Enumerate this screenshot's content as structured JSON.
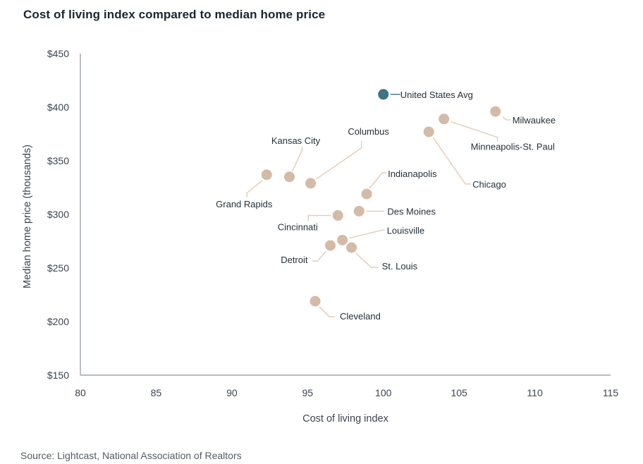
{
  "title": "Cost of living index compared to median home price",
  "source": "Source: Lightcast, National Association of Realtors",
  "colors": {
    "highlight": "#3e7388",
    "point": "#d4bba7",
    "leader": "#e2cbb9",
    "axis": "#8c959b"
  },
  "chart_data": {
    "type": "scatter",
    "title": "Cost of living index compared to median home price",
    "xlabel": "Cost of living index",
    "ylabel": "Median home price (thousands)",
    "xlim": [
      80,
      115
    ],
    "ylim": [
      150,
      450
    ],
    "xticks": [
      80,
      85,
      90,
      95,
      100,
      105,
      110,
      115
    ],
    "yticks": [
      150,
      200,
      250,
      300,
      350,
      400,
      450
    ],
    "xtick_labels": [
      "80",
      "85",
      "90",
      "95",
      "100",
      "105",
      "110",
      "115"
    ],
    "ytick_labels": [
      "$150",
      "$200",
      "$250",
      "$300",
      "$350",
      "$400",
      "$450"
    ],
    "grid": false,
    "legend": "none",
    "points": [
      {
        "label": "United States Avg",
        "x": 100.0,
        "y": 412,
        "highlight": true
      },
      {
        "label": "Milwaukee",
        "x": 107.4,
        "y": 396
      },
      {
        "label": "Minneapolis-St. Paul",
        "x": 104.0,
        "y": 389
      },
      {
        "label": "Chicago",
        "x": 103.0,
        "y": 377
      },
      {
        "label": "Grand Rapids",
        "x": 92.3,
        "y": 337
      },
      {
        "label": "Kansas City",
        "x": 93.8,
        "y": 335
      },
      {
        "label": "Columbus",
        "x": 95.2,
        "y": 329
      },
      {
        "label": "Indianapolis",
        "x": 98.9,
        "y": 319
      },
      {
        "label": "Des Moines",
        "x": 98.4,
        "y": 303
      },
      {
        "label": "Cincinnati",
        "x": 97.0,
        "y": 299
      },
      {
        "label": "Louisville",
        "x": 97.3,
        "y": 276
      },
      {
        "label": "Detroit",
        "x": 96.5,
        "y": 271
      },
      {
        "label": "St. Louis",
        "x": 97.9,
        "y": 269
      },
      {
        "label": "Cleveland",
        "x": 95.5,
        "y": 219
      }
    ]
  }
}
